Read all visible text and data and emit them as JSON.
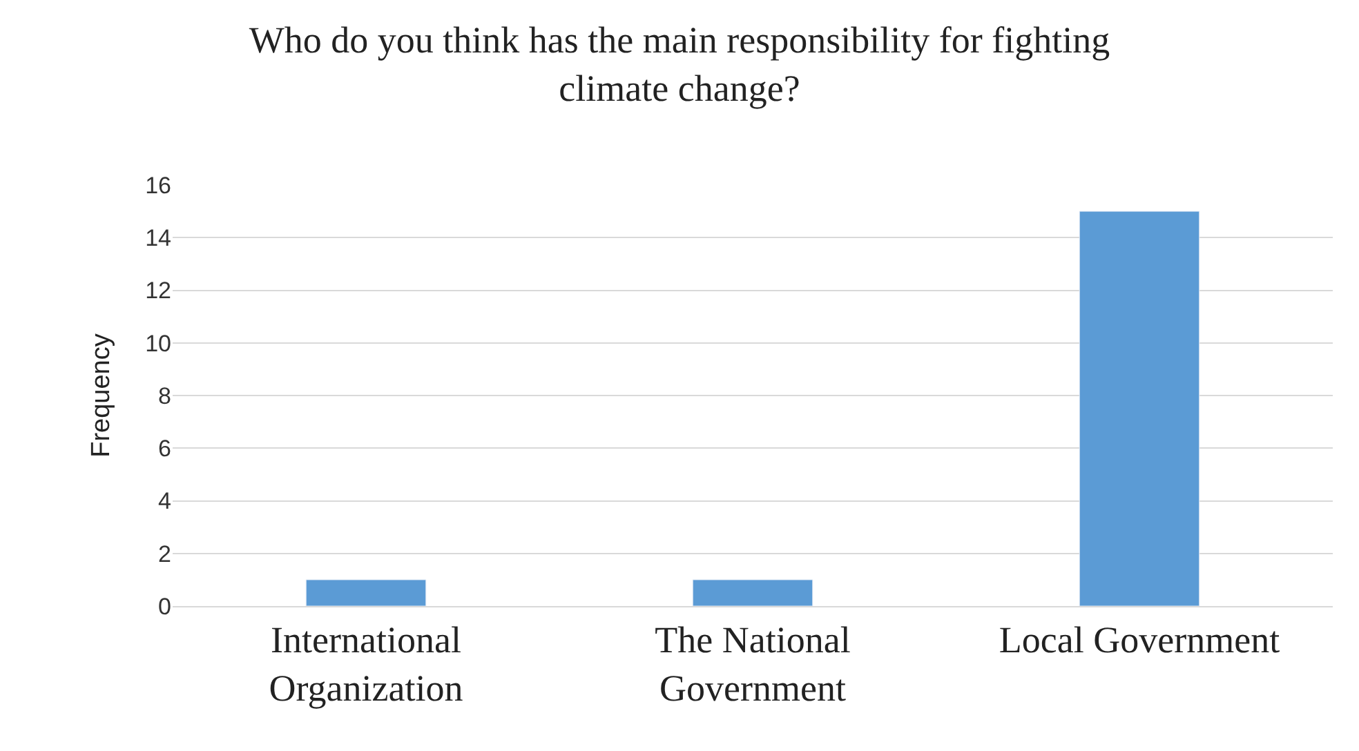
{
  "chart_data": {
    "type": "bar",
    "title": "Who do you think has the main responsibility for fighting climate change?",
    "ylabel": "Frequency",
    "categories": [
      "International Organization",
      "The National Government",
      "Local Government"
    ],
    "values": [
      1,
      1,
      15
    ],
    "color": "#5b9bd5",
    "ylim": [
      0,
      16
    ],
    "yticks": [
      0,
      2,
      4,
      6,
      8,
      10,
      12,
      14,
      16
    ],
    "grid": "y"
  }
}
